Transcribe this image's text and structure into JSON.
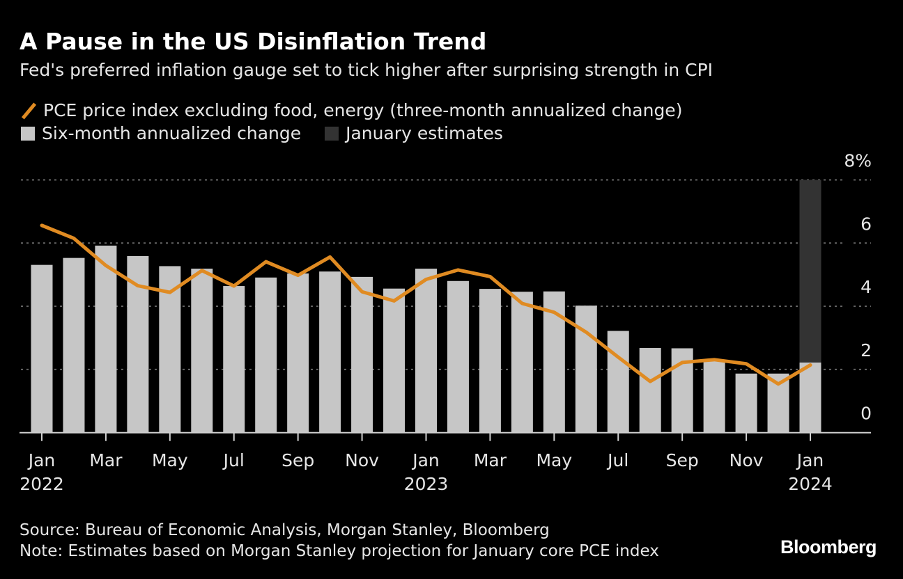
{
  "title": "A Pause in the US Disinflation Trend",
  "subtitle": "Fed's preferred inflation gauge set to tick higher after surprising strength in CPI",
  "legend": {
    "line_label": "PCE price index excluding food, energy (three-month annualized change)",
    "bar_label": "Six-month annualized change",
    "estimate_label": "January estimates"
  },
  "footer": {
    "source": "Source: Bureau of Economic Analysis, Morgan Stanley, Bloomberg",
    "note": "Note: Estimates based on Morgan Stanley projection for January core PCE index",
    "logo": "Bloomberg"
  },
  "colors": {
    "background": "#000000",
    "bars": "#c6c6c6",
    "estimate": "#333333",
    "line": "#e08b22",
    "grid": "#666666"
  },
  "chart_data": {
    "type": "bar",
    "title": "A Pause in the US Disinflation Trend",
    "ylim": [
      0,
      8
    ],
    "yticks": [
      0,
      2,
      4,
      6,
      8
    ],
    "ytick_labels": [
      "0",
      "2",
      "4",
      "6",
      "8%"
    ],
    "y_axis_side": "right",
    "grid": true,
    "categories": [
      "Jan 2022",
      "Feb 2022",
      "Mar 2022",
      "Apr 2022",
      "May 2022",
      "Jun 2022",
      "Jul 2022",
      "Aug 2022",
      "Sep 2022",
      "Oct 2022",
      "Nov 2022",
      "Dec 2022",
      "Jan 2023",
      "Feb 2023",
      "Mar 2023",
      "Apr 2023",
      "May 2023",
      "Jun 2023",
      "Jul 2023",
      "Aug 2023",
      "Sep 2023",
      "Oct 2023",
      "Nov 2023",
      "Dec 2023",
      "Jan 2024"
    ],
    "xtick_labels": [
      {
        "index": 0,
        "month": "Jan",
        "year": "2022"
      },
      {
        "index": 2,
        "month": "Mar",
        "year": ""
      },
      {
        "index": 4,
        "month": "May",
        "year": ""
      },
      {
        "index": 6,
        "month": "Jul",
        "year": ""
      },
      {
        "index": 8,
        "month": "Sep",
        "year": ""
      },
      {
        "index": 10,
        "month": "Nov",
        "year": ""
      },
      {
        "index": 12,
        "month": "Jan",
        "year": "2023"
      },
      {
        "index": 14,
        "month": "Mar",
        "year": ""
      },
      {
        "index": 16,
        "month": "May",
        "year": ""
      },
      {
        "index": 18,
        "month": "Jul",
        "year": ""
      },
      {
        "index": 20,
        "month": "Sep",
        "year": ""
      },
      {
        "index": 22,
        "month": "Nov",
        "year": ""
      },
      {
        "index": 24,
        "month": "Jan",
        "year": "2024"
      }
    ],
    "series": [
      {
        "name": "Six-month annualized change",
        "type": "bar",
        "values": [
          5.31,
          5.53,
          5.92,
          5.59,
          5.27,
          5.19,
          4.64,
          4.91,
          5.04,
          5.1,
          4.93,
          4.56,
          5.19,
          4.8,
          4.55,
          4.46,
          4.47,
          4.02,
          3.22,
          2.68,
          2.67,
          2.3,
          1.87,
          1.87,
          2.22
        ]
      },
      {
        "name": "January estimates",
        "type": "range",
        "category": "Jan 2024",
        "low": 2.22,
        "high": 8.0
      },
      {
        "name": "PCE price index excluding food, energy (three-month annualized change)",
        "type": "line",
        "values": [
          6.56,
          6.15,
          5.29,
          4.65,
          4.44,
          5.13,
          4.64,
          5.41,
          4.98,
          5.56,
          4.46,
          4.17,
          4.85,
          5.15,
          4.94,
          4.09,
          3.81,
          3.18,
          2.39,
          1.62,
          2.22,
          2.31,
          2.18,
          1.54,
          2.14
        ]
      }
    ]
  }
}
